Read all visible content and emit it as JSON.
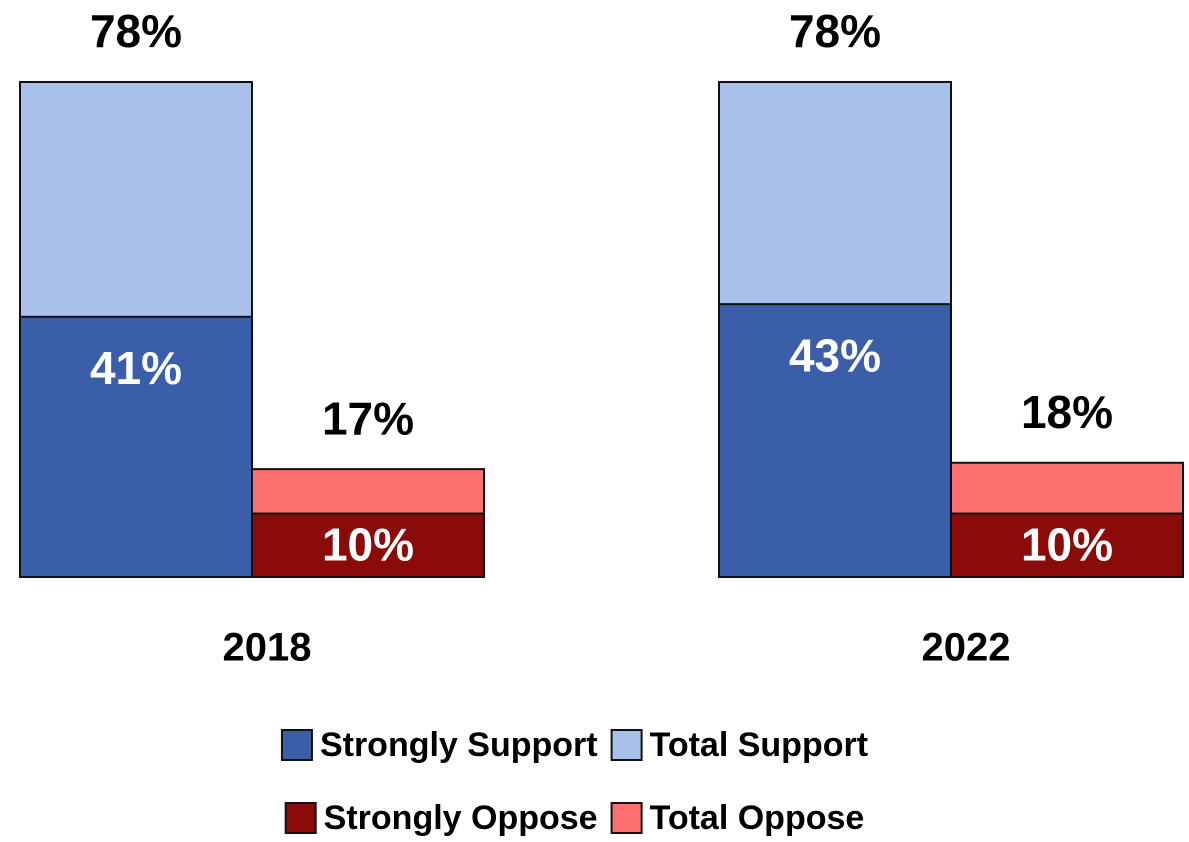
{
  "chart_data": {
    "type": "bar",
    "categories": [
      "2018",
      "2022"
    ],
    "series": [
      {
        "name": "Strongly Support",
        "color": "#3a5ea8",
        "values": [
          41,
          43
        ],
        "value_labels": [
          "41%",
          "43%"
        ]
      },
      {
        "name": "Total Support",
        "color": "#a9c1ea",
        "values": [
          78,
          78
        ],
        "value_labels": [
          "78%",
          "78%"
        ]
      },
      {
        "name": "Strongly Oppose",
        "color": "#8b0a0a",
        "values": [
          10,
          10
        ],
        "value_labels": [
          "10%",
          "10%"
        ]
      },
      {
        "name": "Total Oppose",
        "color": "#ff7070",
        "values": [
          17,
          18
        ],
        "value_labels": [
          "17%",
          "18%"
        ]
      }
    ]
  }
}
